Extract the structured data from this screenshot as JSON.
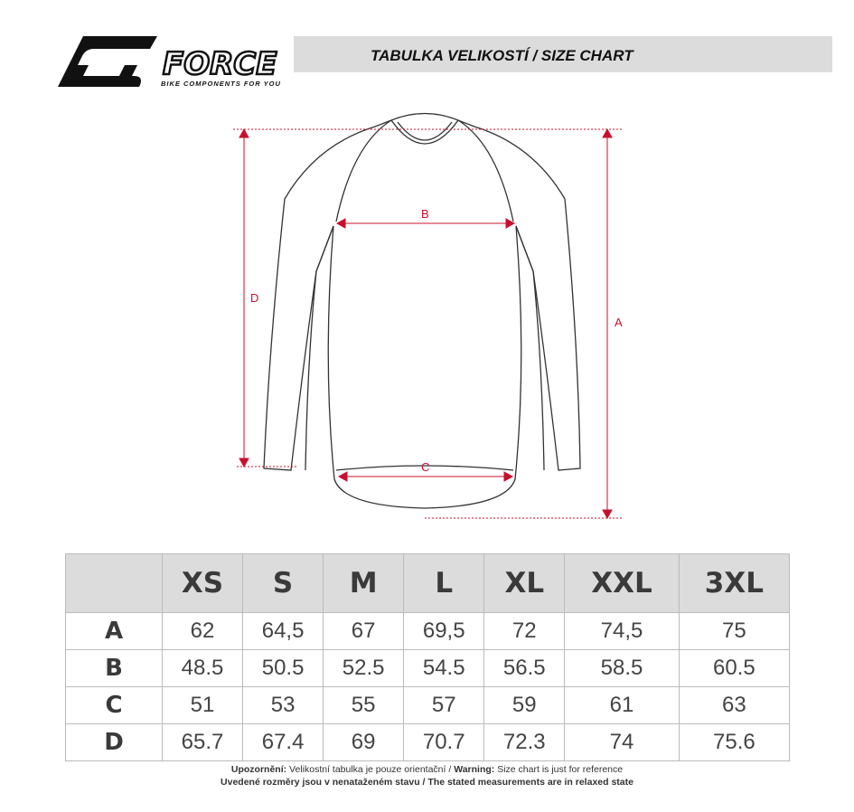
{
  "header": {
    "title": "TABULKA VELIKOSTÍ / SIZE CHART",
    "brand": "FORCE",
    "tagline": "BIKE COMPONENTS FOR YOU"
  },
  "diagram": {
    "labels": {
      "a": "A",
      "b": "B",
      "c": "C",
      "d": "D"
    },
    "accent": "#c8102e"
  },
  "table": {
    "sizes": [
      "XS",
      "S",
      "M",
      "L",
      "XL",
      "XXL",
      "3XL"
    ],
    "rows": [
      {
        "label": "A",
        "values": [
          "62",
          "64,5",
          "67",
          "69,5",
          "72",
          "74,5",
          "75"
        ]
      },
      {
        "label": "B",
        "values": [
          "48.5",
          "50.5",
          "52.5",
          "54.5",
          "56.5",
          "58.5",
          "60.5"
        ]
      },
      {
        "label": "C",
        "values": [
          "51",
          "53",
          "55",
          "57",
          "59",
          "61",
          "63"
        ]
      },
      {
        "label": "D",
        "values": [
          "65.7",
          "67.4",
          "69",
          "70.7",
          "72.3",
          "74",
          "75.6"
        ]
      }
    ]
  },
  "footer": {
    "warning_cz_label": "Upozornění:",
    "warning_cz": " Velikostní tabulka je pouze orientační / ",
    "warning_en_label": "Warning:",
    "warning_en": " Size chart is just for reference",
    "line2": "Uvedené rozměry jsou v nenataženém stavu / The stated measurements are in relaxed state"
  }
}
